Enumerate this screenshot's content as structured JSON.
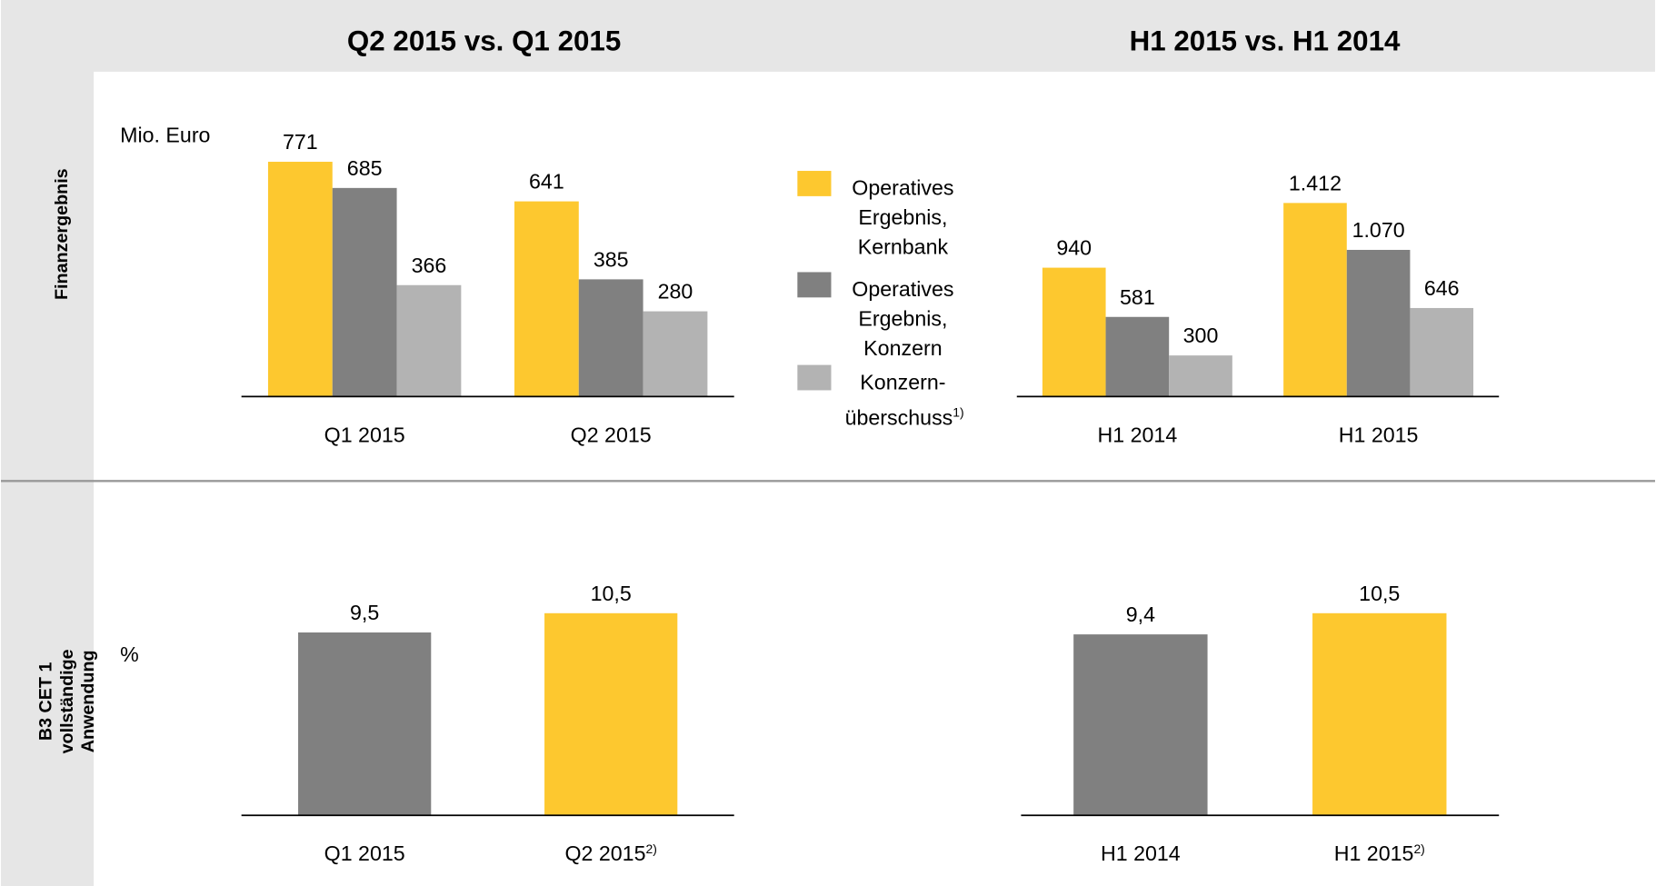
{
  "headers": [
    "Q2 2015 vs. Q1 2015",
    "H1 2015 vs. H1 2014"
  ],
  "row_labels": [
    [
      "Finanzergebnis"
    ],
    [
      "B3 CET 1",
      "vollständige",
      "Anwendung"
    ]
  ],
  "units": [
    "Mio. Euro",
    "%"
  ],
  "chart_data": [
    {
      "type": "bar",
      "categories": [
        "Q1 2015",
        "Q2 2015"
      ],
      "ylim": [
        0,
        800
      ],
      "legend": "center-right",
      "series": [
        {
          "name": "Operatives Ergebnis, Kernbank",
          "color": "#fdc82f",
          "values": [
            771,
            641
          ],
          "value_labels": [
            "771",
            "641"
          ]
        },
        {
          "name": "Operatives Ergebnis, Konzern",
          "color": "#808080",
          "values": [
            685,
            385
          ],
          "value_labels": [
            "685",
            "385"
          ]
        },
        {
          "name": "Konzern-überschuss",
          "footnote": "1)",
          "color": "#b3b3b3",
          "values": [
            366,
            280
          ],
          "value_labels": [
            "366",
            "280"
          ]
        }
      ]
    },
    {
      "type": "bar",
      "categories": [
        "H1 2014",
        "H1 2015"
      ],
      "ylim": [
        0,
        2000
      ],
      "series": [
        {
          "color": "#fdc82f",
          "values": [
            940,
            1412
          ],
          "value_labels": [
            "940",
            "1.412"
          ]
        },
        {
          "color": "#808080",
          "values": [
            581,
            1070
          ],
          "value_labels": [
            "581",
            "1.070"
          ]
        },
        {
          "color": "#b3b3b3",
          "values": [
            300,
            646
          ],
          "value_labels": [
            "300",
            "646"
          ]
        }
      ]
    },
    {
      "type": "bar",
      "categories": [
        "Q1 2015",
        "Q2 2015"
      ],
      "category_footnotes": [
        null,
        "2)"
      ],
      "ylim": [
        0,
        12
      ],
      "colors": [
        "#808080",
        "#fdc82f"
      ],
      "values": [
        9.5,
        10.5
      ],
      "value_labels": [
        "9,5",
        "10,5"
      ]
    },
    {
      "type": "bar",
      "categories": [
        "H1 2014",
        "H1 2015"
      ],
      "category_footnotes": [
        null,
        "2)"
      ],
      "ylim": [
        0,
        12
      ],
      "colors": [
        "#808080",
        "#fdc82f"
      ],
      "values": [
        9.4,
        10.5
      ],
      "value_labels": [
        "9,4",
        "10,5"
      ]
    }
  ]
}
